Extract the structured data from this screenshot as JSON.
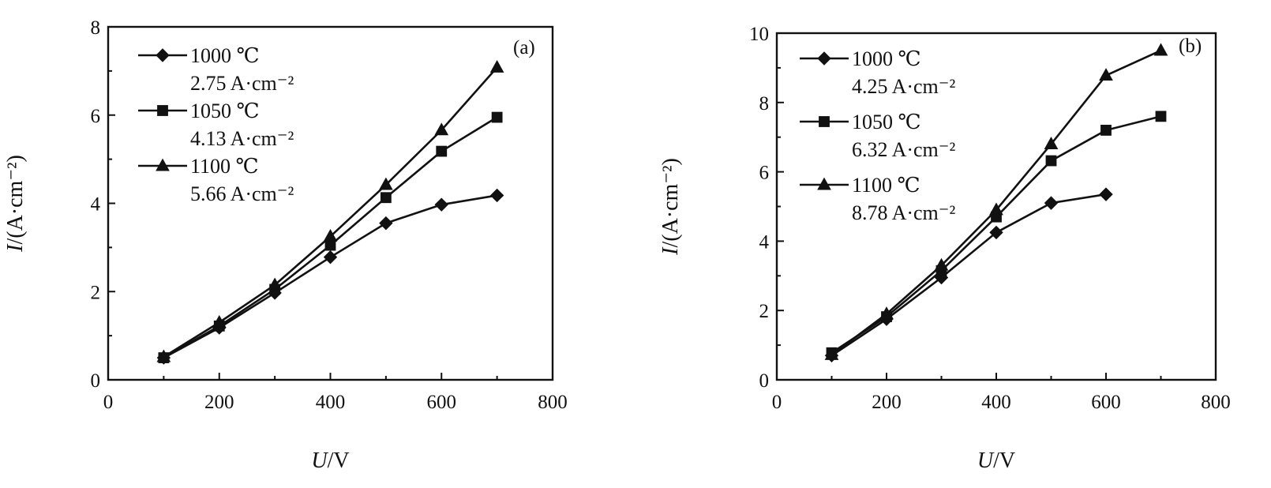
{
  "chart_data": [
    {
      "type": "line",
      "panel_tag": "(a)",
      "xlabel_italic": "U",
      "xlabel_unit": "/V",
      "ylabel_italic": "I",
      "ylabel_unit": "/(A·cm⁻²)",
      "xlim": [
        0,
        800
      ],
      "ylim": [
        0,
        8
      ],
      "xticks": [
        0,
        200,
        400,
        600,
        800
      ],
      "yticks": [
        0,
        2,
        4,
        6,
        8
      ],
      "xtick_labels": [
        "0",
        "200",
        "400",
        "600",
        "800"
      ],
      "ytick_labels": [
        "0",
        "2",
        "4",
        "6",
        "8"
      ],
      "grid": false,
      "legend_position": "top-left",
      "series": [
        {
          "name": "1000 ℃",
          "note": "2.75 A·cm⁻²",
          "marker": "diamond",
          "x": [
            100,
            200,
            300,
            400,
            500,
            600,
            700
          ],
          "y": [
            0.5,
            1.18,
            1.97,
            2.78,
            3.55,
            3.97,
            4.18
          ]
        },
        {
          "name": "1050 ℃",
          "note": "4.13 A·cm⁻²",
          "marker": "square",
          "x": [
            100,
            200,
            300,
            400,
            500,
            600,
            700
          ],
          "y": [
            0.5,
            1.22,
            2.05,
            3.05,
            4.13,
            5.18,
            5.95
          ]
        },
        {
          "name": "1100 ℃",
          "note": "5.66 A·cm⁻²",
          "marker": "triangle",
          "x": [
            100,
            200,
            300,
            400,
            500,
            600,
            700
          ],
          "y": [
            0.52,
            1.3,
            2.15,
            3.25,
            4.42,
            5.66,
            7.08
          ]
        }
      ]
    },
    {
      "type": "line",
      "panel_tag": "(b)",
      "xlabel_italic": "U",
      "xlabel_unit": "/V",
      "ylabel_italic": "I",
      "ylabel_unit": "/(A·cm⁻²)",
      "xlim": [
        0,
        800
      ],
      "ylim": [
        0,
        10
      ],
      "xticks": [
        0,
        200,
        400,
        600,
        800
      ],
      "yticks": [
        0,
        2,
        4,
        6,
        8,
        10
      ],
      "xtick_labels": [
        "0",
        "200",
        "400",
        "600",
        "800"
      ],
      "ytick_labels": [
        "0",
        "2",
        "4",
        "6",
        "8",
        "10"
      ],
      "grid": false,
      "legend_position": "top-left",
      "series": [
        {
          "name": "1000 ℃",
          "note": "4.25 A·cm⁻²",
          "marker": "diamond",
          "x": [
            100,
            200,
            300,
            400,
            500,
            600
          ],
          "y": [
            0.7,
            1.75,
            2.95,
            4.25,
            5.1,
            5.35
          ]
        },
        {
          "name": "1050 ℃",
          "note": "6.32 A·cm⁻²",
          "marker": "square",
          "x": [
            100,
            200,
            300,
            400,
            500,
            600,
            700
          ],
          "y": [
            0.78,
            1.82,
            3.15,
            4.7,
            6.32,
            7.2,
            7.6
          ]
        },
        {
          "name": "1100 ℃",
          "note": "8.78 A·cm⁻²",
          "marker": "triangle",
          "x": [
            100,
            200,
            300,
            400,
            500,
            600,
            700
          ],
          "y": [
            0.72,
            1.9,
            3.3,
            4.9,
            6.8,
            8.78,
            9.5
          ]
        }
      ]
    }
  ]
}
